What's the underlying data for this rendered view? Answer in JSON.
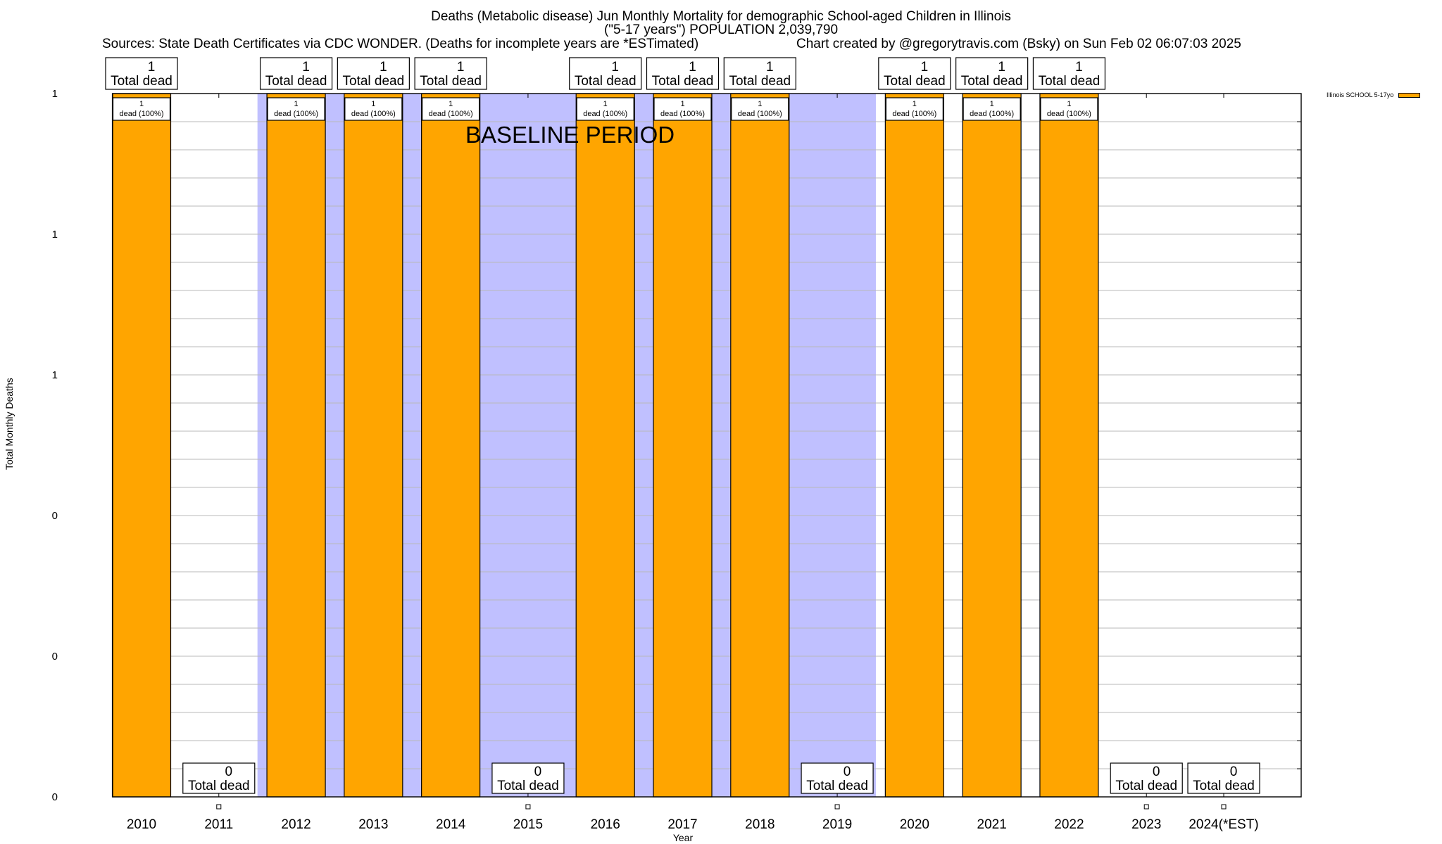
{
  "chart_data": {
    "type": "bar",
    "title": "Deaths (Metabolic disease) Jun Monthly Mortality for demographic School-aged Children in Illinois",
    "subtitle": "(\"5-17 years\") POPULATION 2,039,790",
    "sources": "Sources: State Death Certificates via CDC WONDER. (Deaths for incomplete years are *ESTimated)",
    "credit": "Chart created by @gregorytravis.com (Bsky) on Sun Feb 02 06:07:03 2025",
    "xlabel": "Year",
    "ylabel": "Total Monthly Deaths",
    "ylim": [
      0,
      1
    ],
    "y_ticks": [
      {
        "value": 0,
        "label": "0"
      },
      {
        "value": 0.2,
        "label": "0"
      },
      {
        "value": 0.4,
        "label": "0"
      },
      {
        "value": 0.6,
        "label": "1"
      },
      {
        "value": 0.8,
        "label": "1"
      },
      {
        "value": 1.0,
        "label": "1"
      }
    ],
    "minor_grid_step": 0.04,
    "grid": true,
    "categories": [
      "2010",
      "2011",
      "2012",
      "2013",
      "2014",
      "2015",
      "2016",
      "2017",
      "2018",
      "2019",
      "2020",
      "2021",
      "2022",
      "2023",
      "2024(*EST)"
    ],
    "series": [
      {
        "name": "Illinois SCHOOL 5-17yo",
        "color": "#FFA500",
        "values": [
          1,
          0,
          1,
          1,
          1,
          0,
          1,
          1,
          1,
          0,
          1,
          1,
          1,
          0,
          0
        ]
      }
    ],
    "top_label_suffix": "Total dead",
    "inner_label_suffix": "dead (100%)",
    "baseline": {
      "label": "BASELINE PERIOD",
      "start_category": "2012",
      "end_category": "2019",
      "color": "#C0C0FF"
    },
    "legend": {
      "entries": [
        "Illinois SCHOOL 5-17yo"
      ],
      "placement": "top-right-outside"
    }
  }
}
